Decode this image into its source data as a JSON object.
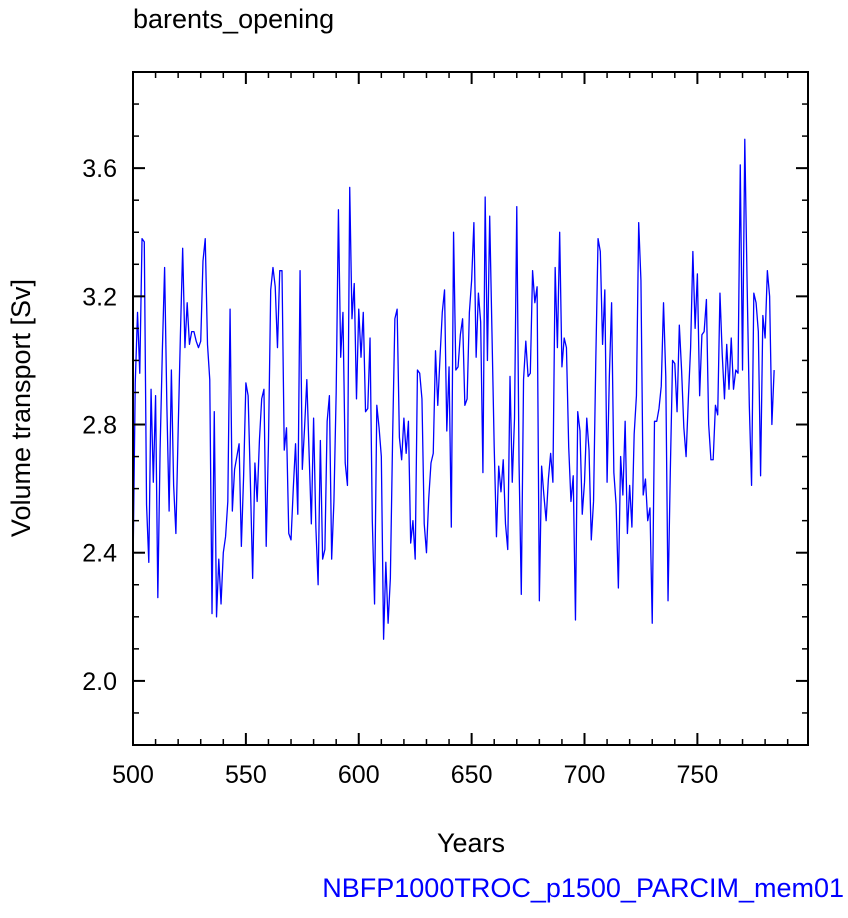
{
  "chart_data": {
    "type": "line",
    "title": "barents_opening",
    "xlabel": "Years",
    "ylabel": "Volume transport [Sv]",
    "footer": "NBFP1000TROC_p1500_PARCIM_mem01",
    "xlim": [
      500,
      799
    ],
    "ylim": [
      1.8,
      3.9
    ],
    "x_ticks": [
      500,
      550,
      600,
      650,
      700,
      750
    ],
    "x_tick_labels": [
      "500",
      "550",
      "600",
      "650",
      "700",
      "750"
    ],
    "x_minor_step": 10,
    "y_ticks": [
      2.0,
      2.4,
      2.8,
      3.2,
      3.6
    ],
    "y_tick_labels": [
      "2.0",
      "2.4",
      "2.8",
      "3.2",
      "3.6"
    ],
    "y_minor_step": 0.1,
    "grid": false,
    "legend": "none",
    "series": [
      {
        "color": "#0000ff",
        "x_start": 500,
        "x_step": 1,
        "values": [
          2.35,
          2.93,
          3.15,
          2.96,
          3.38,
          3.37,
          2.55,
          2.37,
          2.91,
          2.62,
          2.89,
          2.26,
          2.72,
          3.03,
          3.29,
          2.86,
          2.53,
          2.97,
          2.61,
          2.46,
          2.78,
          3.08,
          3.35,
          3.04,
          3.18,
          3.05,
          3.09,
          3.09,
          3.06,
          3.04,
          3.06,
          3.31,
          3.38,
          3.05,
          2.94,
          2.21,
          2.84,
          2.2,
          2.38,
          2.24,
          2.4,
          2.45,
          2.56,
          3.16,
          2.53,
          2.66,
          2.7,
          2.74,
          2.42,
          2.64,
          2.93,
          2.89,
          2.62,
          2.32,
          2.68,
          2.56,
          2.75,
          2.88,
          2.91,
          2.42,
          2.74,
          3.22,
          3.29,
          3.23,
          3.04,
          3.28,
          3.28,
          2.72,
          2.79,
          2.46,
          2.44,
          2.6,
          2.74,
          2.52,
          3.28,
          2.66,
          2.79,
          2.94,
          2.71,
          2.49,
          2.82,
          2.48,
          2.3,
          2.75,
          2.38,
          2.41,
          2.81,
          2.89,
          2.38,
          2.56,
          2.9,
          3.47,
          3.01,
          3.15,
          2.68,
          2.61,
          3.54,
          3.13,
          3.24,
          2.88,
          3.16,
          3.01,
          3.15,
          2.84,
          2.85,
          3.07,
          2.5,
          2.24,
          2.86,
          2.79,
          2.7,
          2.13,
          2.37,
          2.18,
          2.32,
          2.76,
          3.13,
          3.16,
          2.76,
          2.69,
          2.82,
          2.71,
          2.81,
          2.43,
          2.5,
          2.38,
          2.97,
          2.96,
          2.88,
          2.49,
          2.4,
          2.57,
          2.68,
          2.71,
          3.03,
          2.86,
          3.01,
          3.15,
          3.22,
          2.78,
          2.98,
          2.48,
          3.4,
          2.97,
          2.98,
          3.08,
          3.13,
          2.86,
          2.88,
          3.15,
          3.25,
          3.43,
          3.01,
          3.21,
          3.12,
          2.65,
          3.51,
          3.0,
          3.45,
          3.09,
          2.73,
          2.45,
          2.67,
          2.59,
          2.69,
          2.49,
          2.41,
          2.95,
          2.62,
          2.82,
          3.48,
          2.68,
          2.27,
          2.94,
          3.06,
          2.95,
          2.96,
          3.28,
          3.18,
          3.23,
          2.25,
          2.67,
          2.58,
          2.5,
          2.63,
          2.71,
          2.62,
          3.29,
          3.04,
          3.4,
          2.98,
          3.07,
          3.04,
          2.73,
          2.56,
          2.64,
          2.19,
          2.84,
          2.78,
          2.52,
          2.62,
          2.82,
          2.72,
          2.44,
          2.56,
          3.0,
          3.38,
          3.34,
          3.05,
          3.22,
          2.62,
          2.95,
          3.18,
          2.65,
          2.55,
          2.29,
          2.7,
          2.58,
          2.81,
          2.46,
          2.61,
          2.48,
          2.77,
          2.89,
          3.43,
          3.25,
          2.58,
          2.63,
          2.5,
          2.54,
          2.18,
          2.81,
          2.81,
          2.85,
          2.92,
          3.18,
          2.95,
          2.25,
          2.65,
          3.0,
          2.99,
          2.84,
          3.11,
          2.97,
          2.79,
          2.7,
          2.88,
          3.04,
          3.34,
          3.1,
          3.27,
          2.89,
          3.08,
          3.09,
          3.19,
          2.8,
          2.69,
          2.69,
          2.86,
          2.83,
          3.21,
          3.02,
          2.88,
          3.05,
          2.91,
          3.07,
          2.91,
          2.97,
          2.96,
          3.61,
          2.97,
          3.69,
          3.25,
          2.86,
          2.61,
          3.21,
          3.18,
          3.09,
          2.64,
          3.14,
          3.07,
          3.28,
          3.2,
          2.8,
          2.97
        ]
      }
    ]
  }
}
